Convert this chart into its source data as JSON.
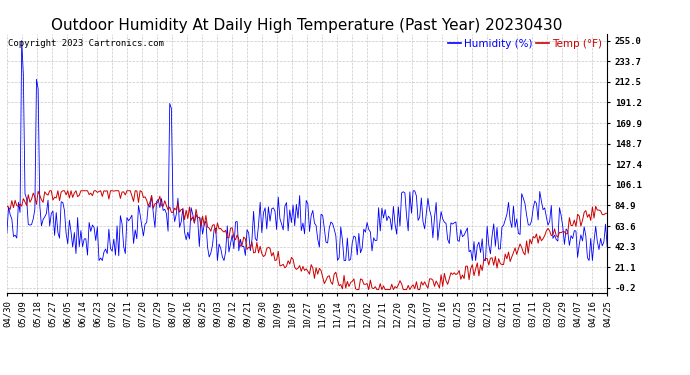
{
  "title": "Outdoor Humidity At Daily High Temperature (Past Year) 20230430",
  "copyright": "Copyright 2023 Cartronics.com",
  "legend_humidity": "Humidity (%)",
  "legend_temp": "Temp (°F)",
  "humidity_color": "#0000ff",
  "temp_color": "#cc0000",
  "background_color": "#ffffff",
  "plot_bg_color": "#ffffff",
  "grid_color": "#bbbbbb",
  "yticks": [
    -0.2,
    21.1,
    42.3,
    63.6,
    84.9,
    106.1,
    127.4,
    148.7,
    169.9,
    191.2,
    212.5,
    233.7,
    255.0
  ],
  "ylim": [
    -5,
    262
  ],
  "xtick_labels": [
    "04/30",
    "05/09",
    "05/18",
    "05/27",
    "06/05",
    "06/14",
    "06/23",
    "07/02",
    "07/11",
    "07/20",
    "07/29",
    "08/07",
    "08/16",
    "08/25",
    "09/03",
    "09/12",
    "09/21",
    "09/30",
    "10/09",
    "10/18",
    "10/27",
    "11/05",
    "11/14",
    "11/23",
    "12/02",
    "12/11",
    "12/20",
    "12/29",
    "01/07",
    "01/16",
    "01/25",
    "02/03",
    "02/12",
    "02/21",
    "03/01",
    "03/11",
    "03/20",
    "03/29",
    "04/07",
    "04/16",
    "04/25"
  ],
  "n_points": 366,
  "title_fontsize": 11,
  "label_fontsize": 6.5,
  "copyright_fontsize": 6.5,
  "legend_fontsize": 7.5
}
